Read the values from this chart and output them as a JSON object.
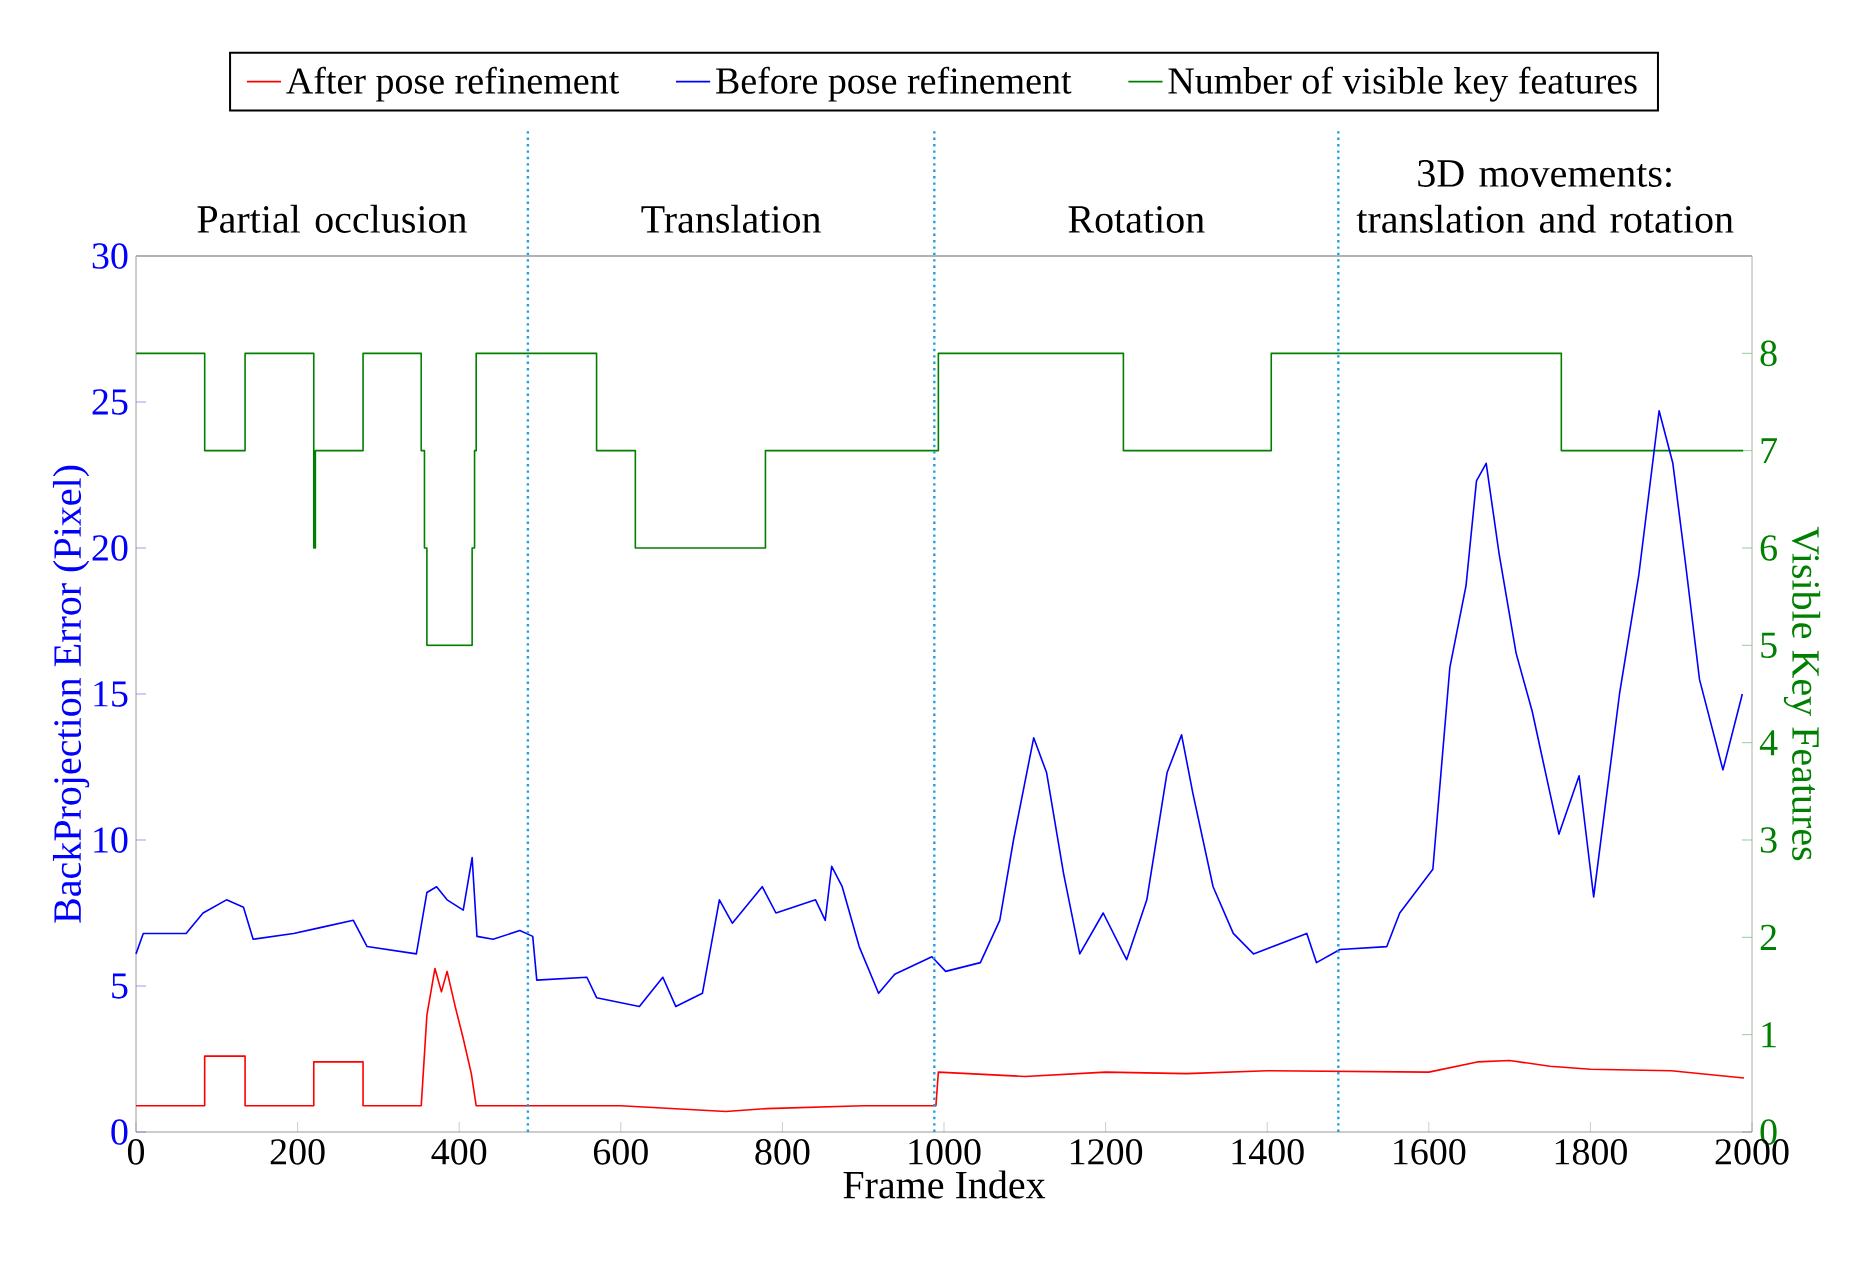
{
  "chart_data": {
    "type": "line",
    "xlabel": "Frame Index",
    "ylabel": "BackProjection Error (Pixel)",
    "y2label": "Visible Key Features",
    "xlim": [
      0,
      2000
    ],
    "xticks": [
      0,
      200,
      400,
      600,
      800,
      1000,
      1200,
      1400,
      1600,
      1800,
      2000
    ],
    "ylim": [
      0,
      30
    ],
    "yticks": [
      0,
      5,
      10,
      15,
      20,
      25,
      30
    ],
    "y2lim": [
      0,
      9
    ],
    "y2ticks": [
      0,
      1,
      2,
      3,
      4,
      5,
      6,
      7,
      8
    ],
    "legend": "top",
    "annotations": [
      "Partial occlusion",
      "Translation",
      "Rotation",
      "3D movements: translation and rotation"
    ],
    "ref_lines": [
      {
        "axis": "x",
        "value": 485,
        "color": "#1aa3e0",
        "line_style": "dotted"
      },
      {
        "axis": "x",
        "value": 988,
        "color": "#1aa3e0",
        "line_style": "dotted"
      },
      {
        "axis": "x",
        "value": 1488,
        "color": "#1aa3e0",
        "line_style": "dotted"
      }
    ],
    "series": [
      {
        "name": "After pose refinement",
        "color": "#ff0000",
        "x": [
          0,
          85,
          85,
          135,
          135,
          220,
          220,
          281,
          281,
          353,
          360,
          370,
          378,
          385,
          395,
          405,
          415,
          421,
          600,
          730,
          780,
          900,
          990,
          993,
          1100,
          1200,
          1300,
          1400,
          1600,
          1660,
          1700,
          1750,
          1800,
          1900,
          1990
        ],
        "values": [
          0.9,
          0.9,
          2.6,
          2.6,
          0.9,
          0.9,
          2.4,
          2.4,
          0.9,
          0.9,
          4.0,
          5.6,
          4.8,
          5.5,
          4.3,
          3.2,
          2.0,
          0.9,
          0.9,
          0.7,
          0.8,
          0.9,
          0.9,
          2.05,
          1.9,
          2.05,
          2.0,
          2.1,
          2.05,
          2.4,
          2.45,
          2.25,
          2.15,
          2.1,
          1.85
        ]
      },
      {
        "name": "Before pose refinement",
        "color": "#0000ff",
        "x": [
          0,
          9,
          62,
          83,
          112,
          133,
          145,
          195,
          228,
          269,
          286,
          347,
          360,
          372,
          385,
          405,
          416,
          422,
          442,
          475,
          491,
          496,
          558,
          570,
          623,
          652,
          668,
          701,
          722,
          738,
          775,
          792,
          841,
          853,
          861,
          874,
          895,
          919,
          939,
          985,
          1002,
          1045,
          1069,
          1086,
          1111,
          1127,
          1148,
          1168,
          1197,
          1226,
          1251,
          1276,
          1294,
          1308,
          1333,
          1358,
          1383,
          1449,
          1461,
          1490,
          1548,
          1564,
          1605,
          1626,
          1646,
          1659,
          1671,
          1687,
          1708,
          1728,
          1761,
          1786,
          1804,
          1836,
          1860,
          1885,
          1902,
          1918,
          1935,
          1964,
          1988
        ],
        "values": [
          6.1,
          6.8,
          6.8,
          7.5,
          7.95,
          7.7,
          6.6,
          6.8,
          7.0,
          7.25,
          6.35,
          6.1,
          8.2,
          8.4,
          7.95,
          7.6,
          9.4,
          6.7,
          6.6,
          6.9,
          6.7,
          5.2,
          5.3,
          4.6,
          4.3,
          5.3,
          4.3,
          4.75,
          7.95,
          7.15,
          8.4,
          7.5,
          7.95,
          7.25,
          9.1,
          8.4,
          6.35,
          4.75,
          5.4,
          6.0,
          5.5,
          5.8,
          7.25,
          10.0,
          13.5,
          12.3,
          8.85,
          6.1,
          7.5,
          5.9,
          7.95,
          12.3,
          13.6,
          11.6,
          8.4,
          6.8,
          6.1,
          6.8,
          5.8,
          6.25,
          6.35,
          7.5,
          9.0,
          15.9,
          18.7,
          22.3,
          22.9,
          19.8,
          16.4,
          14.4,
          10.2,
          12.2,
          8.05,
          15.0,
          19.1,
          24.7,
          22.9,
          19.4,
          15.5,
          12.4,
          15.0
        ]
      },
      {
        "name": "Number of visible key features",
        "color": "#007f00",
        "type": "step",
        "axis": "y2",
        "x": [
          0,
          85,
          135,
          220,
          222,
          281,
          353,
          357,
          360,
          416,
          419,
          421,
          570,
          618,
          779,
          993,
          1222,
          1405,
          1764,
          1989
        ],
        "values": [
          8,
          7,
          8,
          6,
          7,
          8,
          7,
          6,
          5,
          6,
          7,
          8,
          7,
          6,
          7,
          8,
          7,
          8,
          7,
          7
        ]
      }
    ]
  }
}
